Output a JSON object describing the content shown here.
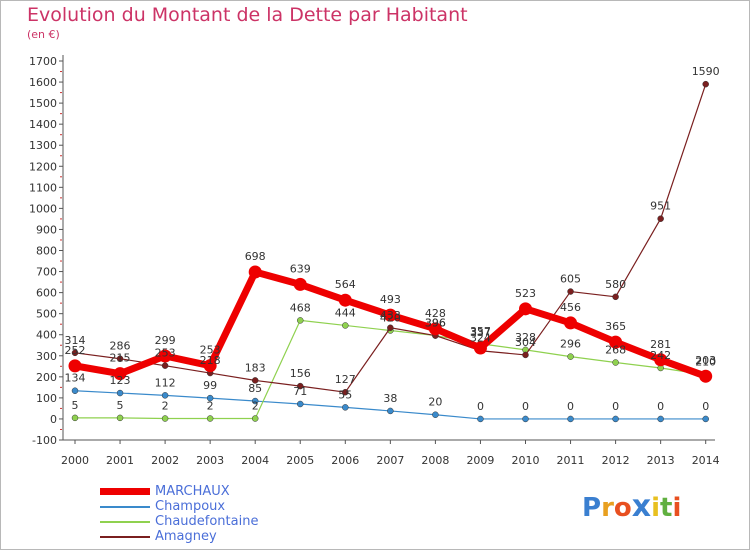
{
  "title": "Evolution du Montant de la Dette par Habitant",
  "subtitle": "(en €)",
  "chart_data": {
    "type": "line",
    "title": "Evolution du Montant de la Dette par Habitant",
    "ylabel": "(en €)",
    "xlabel": "",
    "categories": [
      "2000",
      "2001",
      "2002",
      "2003",
      "2004",
      "2005",
      "2006",
      "2007",
      "2008",
      "2009",
      "2010",
      "2011",
      "2012",
      "2013",
      "2014"
    ],
    "yticks": [
      "-100",
      "0",
      "100",
      "200",
      "300",
      "400",
      "500",
      "600",
      "700",
      "800",
      "900",
      "1000",
      "1100",
      "1200",
      "1300",
      "1400",
      "1500",
      "1600",
      "1700"
    ],
    "ylim": [
      -100,
      1700
    ],
    "grid": false,
    "legend_position": "bottom-left",
    "series": [
      {
        "name": "MARCHAUX",
        "color": "#ee0000",
        "values": [
          252,
          215,
          299,
          253,
          698,
          639,
          564,
          493,
          428,
          337,
          523,
          456,
          365,
          281,
          203
        ],
        "labels": [
          "252",
          "215",
          "299",
          "253",
          "698",
          "639",
          "564",
          "493",
          "428",
          "337",
          "523",
          "456",
          "365",
          "281",
          "203"
        ]
      },
      {
        "name": "Champoux",
        "color": "#3a8acb",
        "values": [
          134,
          123,
          112,
          99,
          85,
          71,
          55,
          38,
          20,
          0,
          0,
          0,
          0,
          0,
          0
        ],
        "labels": [
          "134",
          "123",
          "112",
          "99",
          "85",
          "71",
          "55",
          "38",
          "20",
          "0",
          "0",
          "0",
          "0",
          "0",
          "0"
        ]
      },
      {
        "name": "Chaudefontaine",
        "color": "#8fd14f",
        "values": [
          5,
          5,
          2,
          2,
          2,
          468,
          444,
          420,
          396,
          357,
          328,
          296,
          268,
          242,
          210
        ],
        "labels": [
          "5",
          "5",
          "2",
          "2",
          "2",
          "468",
          "444",
          "420",
          "396",
          "357",
          "328",
          "296",
          "268",
          "242",
          "210"
        ]
      },
      {
        "name": "Amagney",
        "color": "#7a1f1f",
        "values": [
          314,
          286,
          253,
          218,
          183,
          156,
          127,
          433,
          396,
          324,
          304,
          605,
          580,
          951,
          1590
        ],
        "labels": [
          "314",
          "286",
          "253",
          "218",
          "183",
          "156",
          "127",
          "433",
          "396",
          "324",
          "304",
          "605",
          "580",
          "951",
          "1590"
        ]
      }
    ]
  },
  "legend": [
    {
      "label": "MARCHAUX",
      "color": "#ee0000"
    },
    {
      "label": "Champoux",
      "color": "#3a8acb"
    },
    {
      "label": "Chaudefontaine",
      "color": "#8fd14f"
    },
    {
      "label": "Amagney",
      "color": "#7a1f1f"
    }
  ],
  "logo": {
    "letters": [
      "P",
      "r",
      "o",
      "x",
      "i",
      "t",
      "i"
    ],
    "colors": [
      "#3a7fd0",
      "#e8a020",
      "#e85020",
      "#3a7fd0",
      "#e8c020",
      "#60b040",
      "#e85020"
    ]
  }
}
